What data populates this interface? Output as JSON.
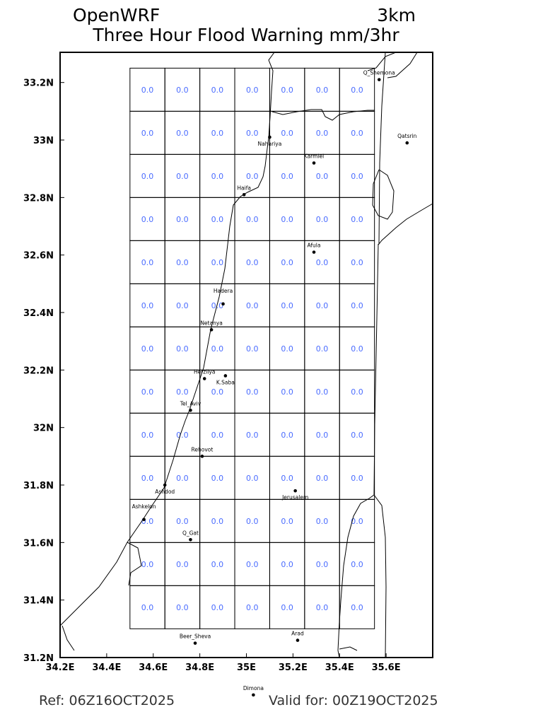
{
  "header": {
    "model": "OpenWRF",
    "resolution": "3km",
    "title": "Three Hour Flood Warning mm/3hr"
  },
  "footer": {
    "ref": "Ref: 06Z16OCT2025",
    "valid": "Valid for: 00Z19OCT2025"
  },
  "colors": {
    "cell_value": "#4a6cff",
    "lines": "#000000"
  },
  "chart_data": {
    "type": "heatmap",
    "xlim": [
      34.2,
      35.8
    ],
    "ylim": [
      31.2,
      33.305
    ],
    "x_ticks": [
      {
        "v": 34.2,
        "label": "34.2E"
      },
      {
        "v": 34.4,
        "label": "34.4E"
      },
      {
        "v": 34.6,
        "label": "34.6E"
      },
      {
        "v": 34.8,
        "label": "34.8E"
      },
      {
        "v": 35.0,
        "label": "35E"
      },
      {
        "v": 35.2,
        "label": "35.2E"
      },
      {
        "v": 35.4,
        "label": "35.4E"
      },
      {
        "v": 35.6,
        "label": "35.6E"
      }
    ],
    "y_ticks": [
      {
        "v": 31.2,
        "label": "31.2N"
      },
      {
        "v": 31.4,
        "label": "31.4N"
      },
      {
        "v": 31.6,
        "label": "31.6N"
      },
      {
        "v": 31.8,
        "label": "31.8N"
      },
      {
        "v": 32.0,
        "label": "32N"
      },
      {
        "v": 32.2,
        "label": "32.2N"
      },
      {
        "v": 32.4,
        "label": "32.4N"
      },
      {
        "v": 32.6,
        "label": "32.6N"
      },
      {
        "v": 32.8,
        "label": "32.8N"
      },
      {
        "v": 33.0,
        "label": "33N"
      },
      {
        "v": 33.2,
        "label": "33.2N"
      }
    ],
    "grid": {
      "lon_start": 34.5,
      "lat_top": 33.25,
      "cell_deg": 0.15,
      "cols": 7,
      "rows": 13
    },
    "values": [
      [
        "0.0",
        "0.0",
        "0.0",
        "0.0",
        "0.0",
        "0.0",
        "0.0"
      ],
      [
        "0.0",
        "0.0",
        "0.0",
        "0.0",
        "0.0",
        "0.0",
        "0.0"
      ],
      [
        "0.0",
        "0.0",
        "0.0",
        "0.0",
        "0.0",
        "0.0",
        "0.0"
      ],
      [
        "0.0",
        "0.0",
        "0.0",
        "0.0",
        "0.0",
        "0.0",
        "0.0"
      ],
      [
        "0.0",
        "0.0",
        "0.0",
        "0.0",
        "0.0",
        "0.0",
        "0.0"
      ],
      [
        "0.0",
        "0.0",
        "0.0",
        "0.0",
        "0.0",
        "0.0",
        "0.0"
      ],
      [
        "0.0",
        "0.0",
        "0.0",
        "0.0",
        "0.0",
        "0.0",
        "0.0"
      ],
      [
        "0.0",
        "0.0",
        "0.0",
        "0.0",
        "0.0",
        "0.0",
        "0.0"
      ],
      [
        "0.0",
        "0.0",
        "0.0",
        "0.0",
        "0.0",
        "0.0",
        "0.0"
      ],
      [
        "0.0",
        "0.0",
        "0.0",
        "0.0",
        "0.0",
        "0.0",
        "0.0"
      ],
      [
        "0.0",
        "0.0",
        "0.0",
        "0.0",
        "0.0",
        "0.0",
        "0.0"
      ],
      [
        "0.0",
        "0.0",
        "0.0",
        "0.0",
        "0.0",
        "0.0",
        "0.0"
      ],
      [
        "0.0",
        "0.0",
        "0.0",
        "0.0",
        "0.0",
        "0.0",
        "0.0"
      ]
    ],
    "cities": [
      {
        "name": "Q_Shemona",
        "lon": 35.57,
        "lat": 33.21
      },
      {
        "name": "Qatsrin",
        "lon": 35.69,
        "lat": 32.99
      },
      {
        "name": "Nahariya",
        "lon": 35.1,
        "lat": 33.01
      },
      {
        "name": "Karmiel",
        "lon": 35.29,
        "lat": 32.92
      },
      {
        "name": "Haifa",
        "lon": 34.99,
        "lat": 32.81
      },
      {
        "name": "Afula",
        "lon": 35.29,
        "lat": 32.61
      },
      {
        "name": "Hadera",
        "lon": 34.9,
        "lat": 32.43
      },
      {
        "name": "Netanya",
        "lon": 34.85,
        "lat": 32.34
      },
      {
        "name": "Herzliya",
        "lon": 34.82,
        "lat": 32.17
      },
      {
        "name": "K.Saba",
        "lon": 34.91,
        "lat": 32.18
      },
      {
        "name": "Tel_Aviv",
        "lon": 34.76,
        "lat": 32.06
      },
      {
        "name": "Rehovot",
        "lon": 34.81,
        "lat": 31.9
      },
      {
        "name": "Ashdod",
        "lon": 34.65,
        "lat": 31.8
      },
      {
        "name": "Jerusalem",
        "lon": 35.21,
        "lat": 31.78
      },
      {
        "name": "Ashkelon",
        "lon": 34.56,
        "lat": 31.68
      },
      {
        "name": "Q_Gat",
        "lon": 34.76,
        "lat": 31.61
      },
      {
        "name": "Beer_Sheva",
        "lon": 34.78,
        "lat": 31.25
      },
      {
        "name": "Arad",
        "lon": 35.22,
        "lat": 31.26
      },
      {
        "name": "Dimona",
        "lon": 35.03,
        "lat": 31.07
      }
    ]
  }
}
